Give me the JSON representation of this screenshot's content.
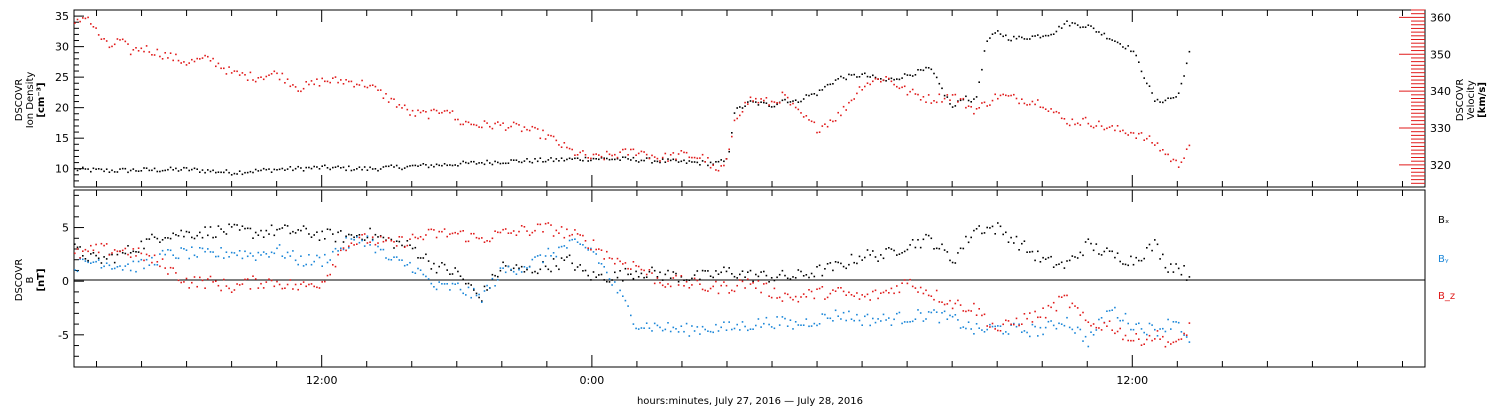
{
  "colors": {
    "black": "#000000",
    "red": "#e01a1a",
    "blue": "#1a86d8"
  },
  "xlabel": "hours:minutes, July 27, 2016 — July 28, 2016",
  "chart_data": [
    {
      "type": "scatter",
      "panel": "top",
      "ylabel_left": [
        "DSCOVR",
        "Ion Density",
        "[cm⁻³]"
      ],
      "ylabel_right": [
        "DSCOVR",
        "Velocity",
        "[km/s]"
      ],
      "x_axis": {
        "unit": "hours from 2016-07-27 00:00",
        "range": [
          1.0,
          61.0
        ],
        "major_ticks": [
          12,
          24,
          48
        ],
        "tick_labels": [
          "12:00",
          "0:00",
          "12:00"
        ]
      },
      "y_left": {
        "range": [
          7,
          36
        ],
        "ticks": [
          10,
          15,
          20,
          25,
          30,
          35
        ]
      },
      "y_right": {
        "range": [
          314,
          362
        ],
        "ticks": [
          320,
          330,
          340,
          350,
          360
        ]
      },
      "series": [
        {
          "name": "Ion Density",
          "axis": "left",
          "color": "#000000",
          "x": [
            1,
            2.5,
            4,
            6,
            8,
            10,
            12,
            14,
            16,
            18,
            20,
            22,
            24,
            26,
            28,
            29.5,
            30,
            30.3,
            31,
            32,
            32.5,
            33,
            33.5,
            34,
            34.5,
            35,
            36,
            37,
            38,
            39,
            40,
            40.5,
            41,
            41.5,
            42,
            42.5,
            43,
            44,
            44.5,
            45,
            46,
            47,
            48,
            49,
            50,
            50.5
          ],
          "y": [
            10,
            9.8,
            9.9,
            10,
            9.5,
            10,
            10.3,
            10.1,
            10.5,
            10.9,
            11.3,
            11.5,
            11.8,
            11.6,
            11.2,
            11,
            11.5,
            19.5,
            21,
            20.5,
            21.5,
            21,
            22,
            22.5,
            24,
            25,
            25.5,
            24.5,
            25.5,
            26.5,
            20,
            22,
            21,
            31,
            32.5,
            31.5,
            31.5,
            32,
            32.5,
            34,
            33.5,
            31.5,
            29.5,
            21,
            22,
            29
          ]
        },
        {
          "name": "Velocity",
          "axis": "right",
          "color": "#e01a1a",
          "x": [
            1,
            1.5,
            2,
            2.5,
            3,
            3.5,
            4,
            5,
            6,
            7,
            8,
            9,
            10,
            11,
            12,
            13,
            14,
            14.5,
            15,
            16,
            17,
            17.5,
            18,
            19,
            20,
            21,
            22,
            23,
            24,
            25,
            26,
            27,
            28,
            29,
            29.5,
            30,
            30.3,
            31,
            32,
            32.5,
            33,
            34,
            35,
            36,
            37,
            38,
            39,
            40,
            41,
            42,
            43,
            44,
            45,
            46,
            47,
            48,
            49,
            49.5,
            50,
            50.5
          ],
          "y": [
            358,
            361,
            356,
            352,
            354,
            351,
            352,
            350,
            348,
            349,
            345,
            344,
            345,
            341,
            343,
            343,
            342,
            340,
            338,
            334,
            334,
            336,
            332,
            331,
            331,
            330,
            328,
            324,
            322,
            323,
            324,
            322,
            323,
            322,
            318,
            321,
            333,
            338,
            337,
            339,
            335,
            330,
            334,
            342,
            344,
            340,
            338,
            339,
            335,
            339,
            338,
            337,
            332,
            332,
            330,
            329,
            326,
            323,
            320,
            326
          ]
        }
      ]
    },
    {
      "type": "scatter",
      "panel": "bottom",
      "ylabel_left": [
        "DSCOVR",
        "B",
        "[nT]"
      ],
      "x_axis": {
        "unit": "hours from 2016-07-27 00:00",
        "range": [
          1.0,
          61.0
        ],
        "major_ticks": [
          12,
          24,
          48
        ],
        "tick_labels": [
          "12:00",
          "0:00",
          "12:00"
        ]
      },
      "y": {
        "range": [
          -8,
          8.5
        ],
        "ticks": [
          -5,
          0,
          5
        ],
        "zero_line": true
      },
      "legend": {
        "position": "right",
        "entries": [
          "Bₓ",
          "Bᵧ",
          "B_z"
        ]
      },
      "series": [
        {
          "name": "Bx",
          "color": "#000000",
          "x": [
            1,
            2,
            3,
            4,
            5,
            6,
            7,
            8,
            9,
            10,
            11,
            12,
            13,
            14,
            15,
            16,
            17,
            18,
            19,
            20,
            21,
            22,
            23,
            23.5,
            24,
            25,
            26,
            27,
            28,
            29,
            30,
            31,
            32,
            33,
            34,
            35,
            36,
            37,
            38,
            39,
            40,
            41,
            42,
            43,
            44,
            45,
            46,
            47,
            48,
            49,
            49.5,
            50,
            50.5
          ],
          "y": [
            3,
            2,
            2.5,
            3.5,
            4.5,
            4.5,
            4.7,
            4.8,
            4.6,
            4.8,
            4.7,
            4.4,
            4.2,
            4.5,
            3.8,
            3.2,
            1.5,
            0.8,
            -1.5,
            1.5,
            1,
            1.5,
            2,
            1,
            0.5,
            0.5,
            1,
            0.7,
            0.5,
            0.5,
            1,
            0.6,
            0.5,
            0.5,
            1,
            1.5,
            2.5,
            2.5,
            3.5,
            4,
            2,
            5,
            5,
            3.5,
            2,
            1.5,
            3.5,
            2.5,
            2,
            3.5,
            1.5,
            1.5,
            0.5
          ]
        },
        {
          "name": "By",
          "color": "#1a86d8",
          "x": [
            1,
            2,
            3,
            4,
            5,
            6,
            7,
            8,
            9,
            10,
            11,
            12,
            13,
            14,
            15,
            16,
            17,
            18,
            19,
            20,
            21,
            22,
            23,
            24,
            25,
            26,
            27,
            28,
            29,
            30,
            31,
            32,
            33,
            34,
            35,
            36,
            37,
            38,
            39,
            40,
            41,
            42,
            43,
            44,
            45,
            46,
            47,
            48,
            49,
            50,
            50.5
          ],
          "y": [
            1.5,
            2,
            1.5,
            1.5,
            2.5,
            2.7,
            2.5,
            2.8,
            2.5,
            3,
            2,
            2,
            3.5,
            4,
            2,
            1.5,
            -0.5,
            -0.5,
            -1.5,
            1,
            1.5,
            2.5,
            3.5,
            3,
            -0.5,
            -4,
            -4.2,
            -4.5,
            -4.3,
            -4.3,
            -4,
            -3.7,
            -4,
            -3.5,
            -3,
            -3.5,
            -3.5,
            -3.3,
            -3,
            -3.5,
            -4.5,
            -4.3,
            -4.5,
            -4.5,
            -3.5,
            -5.5,
            -2.5,
            -4,
            -4.5,
            -3.5,
            -6
          ]
        },
        {
          "name": "Bz",
          "color": "#e01a1a",
          "x": [
            1,
            2,
            3,
            4,
            5,
            6,
            7,
            8,
            9,
            10,
            11,
            12,
            13,
            14,
            15,
            16,
            17,
            18,
            19,
            20,
            21,
            22,
            23,
            24,
            25,
            26,
            27,
            28,
            29,
            30,
            31,
            32,
            33,
            34,
            35,
            36,
            37,
            38,
            39,
            40,
            41,
            42,
            43,
            44,
            45,
            46,
            47,
            48,
            49,
            50,
            50.5
          ],
          "y": [
            2.5,
            3,
            3,
            2.5,
            1.5,
            0,
            0,
            -0.5,
            0,
            0,
            -0.5,
            0,
            3.5,
            4,
            3.5,
            4,
            4.5,
            4.5,
            4,
            4.5,
            4.8,
            5,
            4.5,
            3.5,
            2,
            1.5,
            0,
            0,
            -0.5,
            -0.5,
            0,
            -1,
            -1.5,
            -1,
            -1,
            -1.5,
            -1,
            0,
            -1,
            -2,
            -2.5,
            -4.5,
            -3.5,
            -3,
            -1.5,
            -4,
            -4,
            -5.5,
            -5,
            -6,
            -4
          ]
        }
      ]
    }
  ]
}
